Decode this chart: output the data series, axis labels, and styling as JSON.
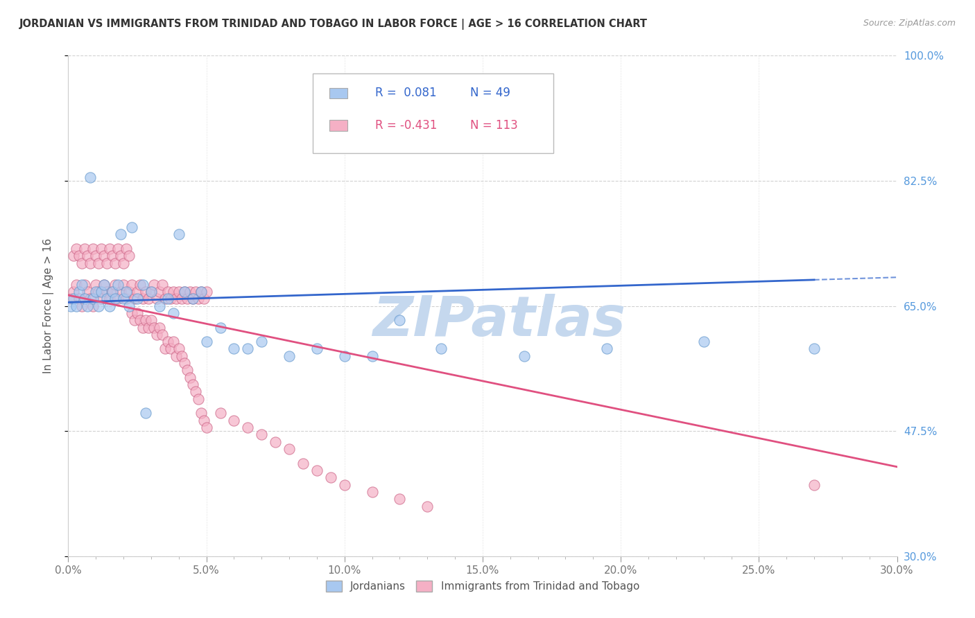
{
  "title": "JORDANIAN VS IMMIGRANTS FROM TRINIDAD AND TOBAGO IN LABOR FORCE | AGE > 16 CORRELATION CHART",
  "source": "Source: ZipAtlas.com",
  "ylabel_label": "In Labor Force | Age > 16",
  "xlim": [
    0.0,
    0.3
  ],
  "ylim": [
    0.3,
    1.0
  ],
  "watermark": "ZIPatlas",
  "jordanians": {
    "color": "#a8c8f0",
    "edge_color": "#6699cc",
    "x": [
      0.001,
      0.002,
      0.003,
      0.004,
      0.005,
      0.006,
      0.007,
      0.008,
      0.009,
      0.01,
      0.011,
      0.012,
      0.013,
      0.014,
      0.015,
      0.016,
      0.017,
      0.018,
      0.019,
      0.02,
      0.021,
      0.022,
      0.023,
      0.025,
      0.027,
      0.03,
      0.033,
      0.036,
      0.038,
      0.04,
      0.042,
      0.045,
      0.048,
      0.05,
      0.055,
      0.06,
      0.065,
      0.07,
      0.08,
      0.09,
      0.1,
      0.11,
      0.12,
      0.135,
      0.165,
      0.195,
      0.23,
      0.27,
      0.028
    ],
    "y": [
      0.65,
      0.66,
      0.65,
      0.67,
      0.68,
      0.66,
      0.65,
      0.83,
      0.66,
      0.67,
      0.65,
      0.67,
      0.68,
      0.66,
      0.65,
      0.67,
      0.66,
      0.68,
      0.75,
      0.66,
      0.67,
      0.65,
      0.76,
      0.66,
      0.68,
      0.67,
      0.65,
      0.66,
      0.64,
      0.75,
      0.67,
      0.66,
      0.67,
      0.6,
      0.62,
      0.59,
      0.59,
      0.6,
      0.58,
      0.59,
      0.58,
      0.58,
      0.63,
      0.59,
      0.58,
      0.59,
      0.6,
      0.59,
      0.5
    ],
    "trend_x": [
      0.0,
      0.3
    ],
    "trend_y": [
      0.655,
      0.69
    ],
    "trend_color": "#3366cc",
    "trend_style": "--"
  },
  "trinidad": {
    "color": "#f5b0c5",
    "edge_color": "#cc6688",
    "x": [
      0.001,
      0.002,
      0.003,
      0.004,
      0.005,
      0.006,
      0.007,
      0.008,
      0.009,
      0.01,
      0.011,
      0.012,
      0.013,
      0.014,
      0.015,
      0.016,
      0.017,
      0.018,
      0.019,
      0.02,
      0.021,
      0.022,
      0.023,
      0.024,
      0.025,
      0.026,
      0.027,
      0.028,
      0.029,
      0.03,
      0.031,
      0.032,
      0.033,
      0.034,
      0.035,
      0.036,
      0.037,
      0.038,
      0.039,
      0.04,
      0.041,
      0.042,
      0.043,
      0.044,
      0.045,
      0.046,
      0.047,
      0.048,
      0.049,
      0.05,
      0.002,
      0.003,
      0.004,
      0.005,
      0.006,
      0.007,
      0.008,
      0.009,
      0.01,
      0.011,
      0.012,
      0.013,
      0.014,
      0.015,
      0.016,
      0.017,
      0.018,
      0.019,
      0.02,
      0.021,
      0.022,
      0.023,
      0.024,
      0.025,
      0.026,
      0.027,
      0.028,
      0.029,
      0.03,
      0.031,
      0.032,
      0.033,
      0.034,
      0.035,
      0.036,
      0.037,
      0.038,
      0.039,
      0.04,
      0.041,
      0.042,
      0.043,
      0.044,
      0.045,
      0.046,
      0.047,
      0.048,
      0.049,
      0.05,
      0.055,
      0.06,
      0.065,
      0.07,
      0.075,
      0.08,
      0.085,
      0.09,
      0.095,
      0.1,
      0.11,
      0.12,
      0.13,
      0.27
    ],
    "y": [
      0.66,
      0.67,
      0.68,
      0.66,
      0.65,
      0.68,
      0.67,
      0.66,
      0.65,
      0.68,
      0.67,
      0.66,
      0.68,
      0.67,
      0.66,
      0.67,
      0.68,
      0.66,
      0.67,
      0.68,
      0.66,
      0.67,
      0.68,
      0.66,
      0.67,
      0.68,
      0.66,
      0.67,
      0.66,
      0.67,
      0.68,
      0.66,
      0.67,
      0.68,
      0.66,
      0.67,
      0.66,
      0.67,
      0.66,
      0.67,
      0.66,
      0.67,
      0.66,
      0.67,
      0.66,
      0.67,
      0.66,
      0.67,
      0.66,
      0.67,
      0.72,
      0.73,
      0.72,
      0.71,
      0.73,
      0.72,
      0.71,
      0.73,
      0.72,
      0.71,
      0.73,
      0.72,
      0.71,
      0.73,
      0.72,
      0.71,
      0.73,
      0.72,
      0.71,
      0.73,
      0.72,
      0.64,
      0.63,
      0.64,
      0.63,
      0.62,
      0.63,
      0.62,
      0.63,
      0.62,
      0.61,
      0.62,
      0.61,
      0.59,
      0.6,
      0.59,
      0.6,
      0.58,
      0.59,
      0.58,
      0.57,
      0.56,
      0.55,
      0.54,
      0.53,
      0.52,
      0.5,
      0.49,
      0.48,
      0.5,
      0.49,
      0.48,
      0.47,
      0.46,
      0.45,
      0.43,
      0.42,
      0.41,
      0.4,
      0.39,
      0.38,
      0.37,
      0.4
    ],
    "trend_x": [
      0.0,
      0.3
    ],
    "trend_y": [
      0.665,
      0.425
    ],
    "trend_color": "#e05080",
    "trend_style": "-"
  },
  "legend_entries": [
    {
      "label_r": "R =  0.081",
      "label_n": "N = 49",
      "color": "#a8c8f0",
      "text_color": "#3366cc"
    },
    {
      "label_r": "R = -0.431",
      "label_n": "N = 113",
      "color": "#f5b0c5",
      "text_color": "#e05080"
    }
  ],
  "bottom_legend": [
    {
      "label": "Jordanians",
      "color": "#a8c8f0"
    },
    {
      "label": "Immigrants from Trinidad and Tobago",
      "color": "#f5b0c5"
    }
  ],
  "bg_color": "#ffffff",
  "grid_color": "#cccccc",
  "tick_color_right": "#5599dd",
  "title_color": "#333333",
  "watermark_color": "#c5d8ee",
  "ylabel_color": "#555555"
}
